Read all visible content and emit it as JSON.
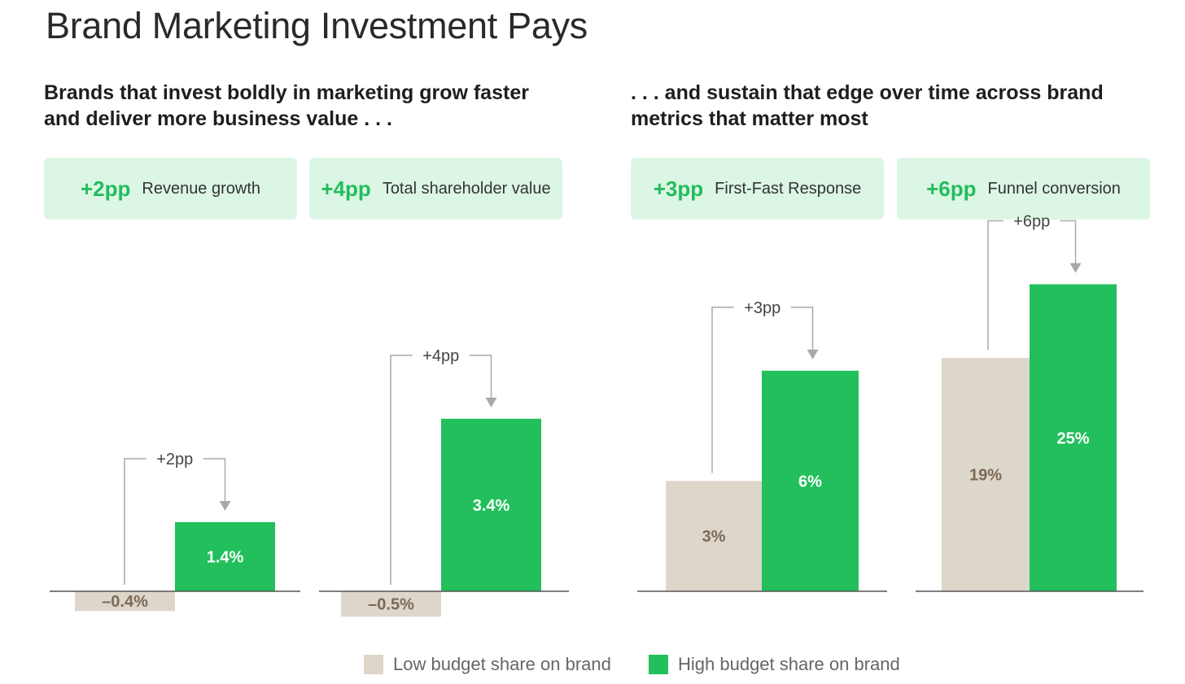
{
  "title": "Brand Marketing Investment Pays",
  "subtitle_left": "Brands that invest boldly in marketing grow faster and deliver more business value . . .",
  "subtitle_right": ". . . and sustain that edge over time across brand metrics that matter most",
  "kpis": [
    {
      "value": "+2pp",
      "label": "Revenue growth"
    },
    {
      "value": "+4pp",
      "label": "Total shareholder value"
    },
    {
      "value": "+3pp",
      "label": "First-Fast Response"
    },
    {
      "value": "+6pp",
      "label": "Funnel conversion"
    }
  ],
  "colors": {
    "low": "#ddd6ca",
    "high": "#22bf5c",
    "low_label": "#7a6a57",
    "high_label": "#ffffff",
    "accent": "#22bd5b",
    "kpi_bg": "#dcf6e5"
  },
  "legend": {
    "low": "Low budget share on brand",
    "high": "High budget share on brand"
  },
  "chart_data": {
    "type": "bar",
    "series": [
      {
        "name": "Low budget share on brand",
        "values": [
          -0.4,
          -0.5,
          3,
          19
        ]
      },
      {
        "name": "High budget share on brand",
        "values": [
          1.4,
          3.4,
          6,
          25
        ]
      }
    ],
    "panels": [
      {
        "metric": "Revenue growth",
        "low": -0.4,
        "high": 1.4,
        "low_label": "–0.4%",
        "high_label": "1.4%",
        "diff_label": "+2pp"
      },
      {
        "metric": "Total shareholder value",
        "low": -0.5,
        "high": 3.4,
        "low_label": "–0.5%",
        "high_label": "3.4%",
        "diff_label": "+4pp"
      },
      {
        "metric": "First-Fast Response",
        "low": 3,
        "high": 6,
        "low_label": "3%",
        "high_label": "6%",
        "diff_label": "+3pp"
      },
      {
        "metric": "Funnel conversion",
        "low": 19,
        "high": 25,
        "low_label": "19%",
        "high_label": "25%",
        "diff_label": "+6pp"
      }
    ],
    "grid": false,
    "legend_position": "bottom-center"
  }
}
